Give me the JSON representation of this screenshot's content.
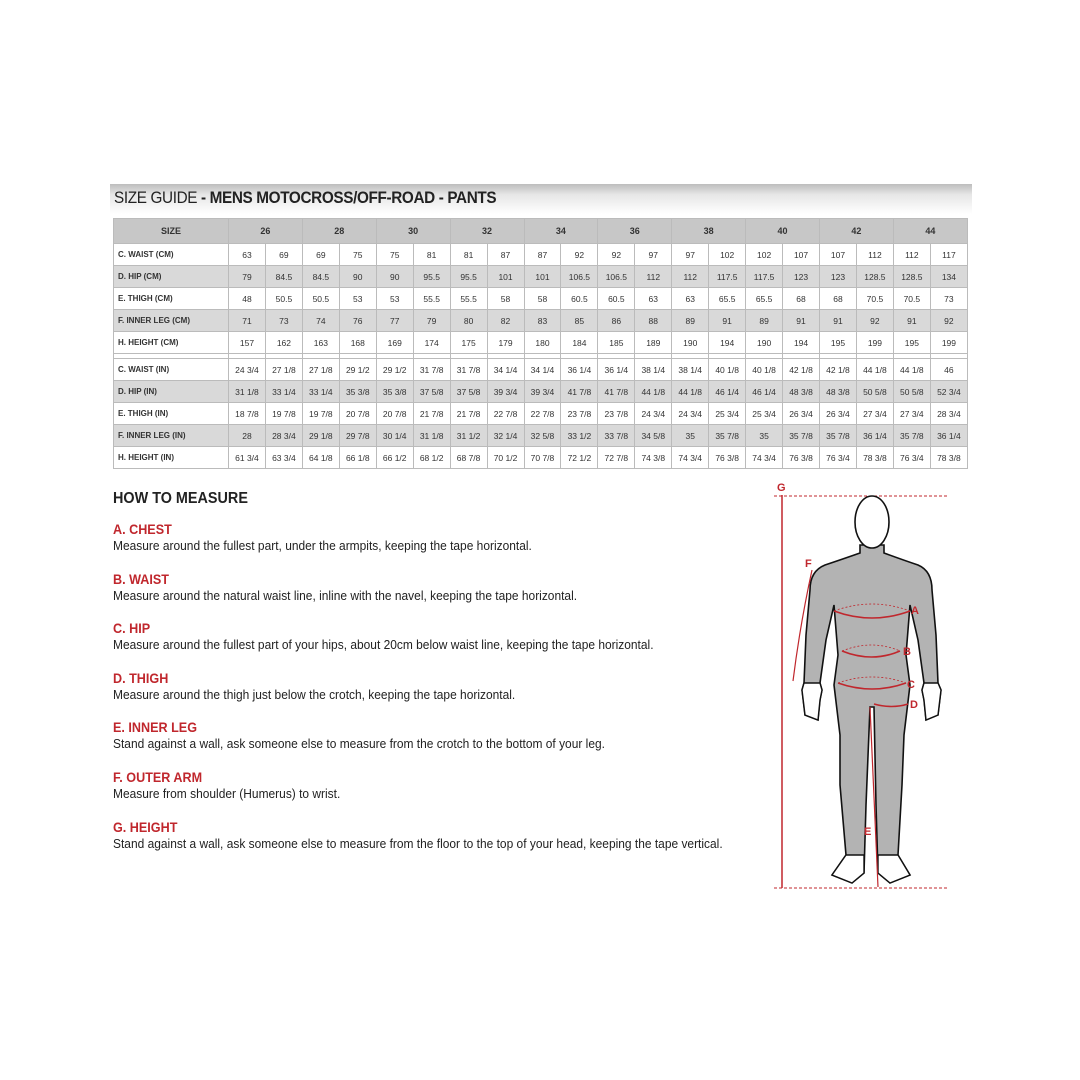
{
  "title": {
    "light": "SIZE GUIDE",
    "bold": " - MENS MOTOCROSS/OFF-ROAD - PANTS"
  },
  "table": {
    "size_label": "SIZE",
    "sizes": [
      "26",
      "28",
      "30",
      "32",
      "34",
      "36",
      "38",
      "40",
      "42",
      "44"
    ],
    "cm_rows": [
      {
        "label": "C. WAIST (CM)",
        "values": [
          "63",
          "69",
          "69",
          "75",
          "75",
          "81",
          "81",
          "87",
          "87",
          "92",
          "92",
          "97",
          "97",
          "102",
          "102",
          "107",
          "107",
          "112",
          "112",
          "117"
        ]
      },
      {
        "label": "D. HIP (CM)",
        "values": [
          "79",
          "84.5",
          "84.5",
          "90",
          "90",
          "95.5",
          "95.5",
          "101",
          "101",
          "106.5",
          "106.5",
          "112",
          "112",
          "117.5",
          "117.5",
          "123",
          "123",
          "128.5",
          "128.5",
          "134"
        ]
      },
      {
        "label": "E. THIGH (CM)",
        "values": [
          "48",
          "50.5",
          "50.5",
          "53",
          "53",
          "55.5",
          "55.5",
          "58",
          "58",
          "60.5",
          "60.5",
          "63",
          "63",
          "65.5",
          "65.5",
          "68",
          "68",
          "70.5",
          "70.5",
          "73"
        ]
      },
      {
        "label": "F. INNER LEG (CM)",
        "values": [
          "71",
          "73",
          "74",
          "76",
          "77",
          "79",
          "80",
          "82",
          "83",
          "85",
          "86",
          "88",
          "89",
          "91",
          "89",
          "91",
          "91",
          "92",
          "91",
          "92"
        ]
      },
      {
        "label": "H. HEIGHT (CM)",
        "values": [
          "157",
          "162",
          "163",
          "168",
          "169",
          "174",
          "175",
          "179",
          "180",
          "184",
          "185",
          "189",
          "190",
          "194",
          "190",
          "194",
          "195",
          "199",
          "195",
          "199"
        ]
      }
    ],
    "in_rows": [
      {
        "label": "C. WAIST (IN)",
        "values": [
          "24 3/4",
          "27 1/8",
          "27 1/8",
          "29 1/2",
          "29 1/2",
          "31 7/8",
          "31 7/8",
          "34 1/4",
          "34 1/4",
          "36 1/4",
          "36 1/4",
          "38 1/4",
          "38 1/4",
          "40 1/8",
          "40 1/8",
          "42 1/8",
          "42 1/8",
          "44 1/8",
          "44 1/8",
          "46"
        ]
      },
      {
        "label": "D. HIP (IN)",
        "values": [
          "31 1/8",
          "33 1/4",
          "33 1/4",
          "35 3/8",
          "35 3/8",
          "37 5/8",
          "37 5/8",
          "39 3/4",
          "39 3/4",
          "41 7/8",
          "41 7/8",
          "44 1/8",
          "44 1/8",
          "46 1/4",
          "46 1/4",
          "48 3/8",
          "48 3/8",
          "50 5/8",
          "50 5/8",
          "52 3/4"
        ]
      },
      {
        "label": "E. THIGH (IN)",
        "values": [
          "18 7/8",
          "19 7/8",
          "19 7/8",
          "20 7/8",
          "20 7/8",
          "21 7/8",
          "21 7/8",
          "22 7/8",
          "22 7/8",
          "23 7/8",
          "23 7/8",
          "24 3/4",
          "24 3/4",
          "25 3/4",
          "25 3/4",
          "26 3/4",
          "26 3/4",
          "27 3/4",
          "27 3/4",
          "28 3/4"
        ]
      },
      {
        "label": "F. INNER LEG (IN)",
        "values": [
          "28",
          "28 3/4",
          "29 1/8",
          "29 7/8",
          "30 1/4",
          "31 1/8",
          "31 1/2",
          "32 1/4",
          "32 5/8",
          "33 1/2",
          "33 7/8",
          "34 5/8",
          "35",
          "35 7/8",
          "35",
          "35 7/8",
          "35 7/8",
          "36 1/4",
          "35 7/8",
          "36 1/4"
        ]
      },
      {
        "label": "H. HEIGHT (IN)",
        "values": [
          "61 3/4",
          "63 3/4",
          "64 1/8",
          "66 1/8",
          "66 1/2",
          "68 1/2",
          "68 7/8",
          "70 1/2",
          "70 7/8",
          "72 1/2",
          "72 7/8",
          "74 3/8",
          "74 3/4",
          "76 3/8",
          "74 3/4",
          "76 3/8",
          "76 3/4",
          "78 3/8",
          "76 3/4",
          "78 3/8"
        ]
      }
    ]
  },
  "how_to_measure": {
    "heading": "HOW TO MEASURE",
    "items": [
      {
        "title": "A. CHEST",
        "text": "Measure around the fullest part, under the armpits, keeping the tape horizontal."
      },
      {
        "title": "B. WAIST",
        "text": "Measure around the natural waist line, inline with the navel, keeping the tape horizontal."
      },
      {
        "title": "C. HIP",
        "text": "Measure around the fullest part of your hips, about 20cm below waist line, keeping the tape horizontal."
      },
      {
        "title": "D. THIGH",
        "text": "Measure around the thigh just below the crotch, keeping the tape horizontal."
      },
      {
        "title": "E. INNER LEG",
        "text": "Stand against a wall, ask someone else to measure from the crotch to the bottom of your leg."
      },
      {
        "title": "F. OUTER ARM",
        "text": "Measure from shoulder (Humerus) to wrist."
      },
      {
        "title": "G. HEIGHT",
        "text": "Stand against a wall, ask someone else to measure from the floor to the top of your head, keeping the tape vertical."
      }
    ]
  },
  "figure": {
    "labels": {
      "a": "A",
      "b": "B",
      "c": "C",
      "d": "D",
      "e": "E",
      "f": "F",
      "g": "G"
    }
  },
  "colors": {
    "accent": "#c0272d",
    "header_gray": "#c7c7c7",
    "row_gray": "#d9d9d9",
    "body_gray": "#b3b3b3"
  }
}
